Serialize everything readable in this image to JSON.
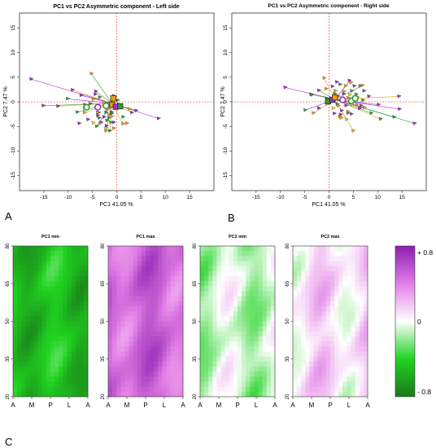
{
  "panel_labels": {
    "a": "A",
    "b": "B",
    "c": "C"
  },
  "chart_data": [
    {
      "id": "A",
      "type": "scatter",
      "title": "PC1 vs PC2 Asymmetric component - Left side",
      "xlabel": "PC1 41.05 %",
      "ylabel": "PC2 7.47 %",
      "xlim": [
        -20,
        20
      ],
      "ylim": [
        -18,
        18
      ],
      "xticks": [
        -15,
        -10,
        -5,
        0,
        5,
        10,
        15
      ],
      "yticks": [
        -15,
        -10,
        -5,
        0,
        5,
        10,
        15
      ],
      "xtick_labels": [
        "-15",
        "-10",
        "-5",
        "0",
        "5",
        "10",
        "15"
      ],
      "ytick_labels": [
        "-15",
        "-10",
        "-5",
        "0",
        "5",
        "10",
        "15"
      ],
      "reference_lines": {
        "x": 0,
        "y": 0,
        "color": "#e53935",
        "style": "dotted"
      },
      "centroid": [
        -1.0,
        -0.3
      ],
      "colors": {
        "green": "#2e9e2e",
        "purple": "#9b30c8",
        "orange": "#f09a1a",
        "yellow": "#e7d22a"
      },
      "series": [
        {
          "color": "purple",
          "points": [
            [
              -17.6,
              4.6
            ],
            [
              -12.1,
              -0.9
            ],
            [
              -15.1,
              -0.8
            ],
            [
              -9.1,
              2.4
            ],
            [
              -7.3,
              1.3
            ],
            [
              -6.5,
              -0.6
            ],
            [
              -5.9,
              -3.6
            ],
            [
              -3.9,
              -2.8
            ],
            [
              -3.2,
              -4.2
            ],
            [
              -2.1,
              -4.9
            ],
            [
              -1.1,
              -2.1
            ],
            [
              -0.6,
              -4.2
            ],
            [
              -4.4,
              1.5
            ],
            [
              -4.3,
              2.1
            ],
            [
              4.0,
              -1.8
            ],
            [
              0.4,
              -0.5
            ],
            [
              -0.8,
              0.3
            ],
            [
              -7.7,
              -4.4
            ],
            [
              -2.6,
              -3.1
            ],
            [
              3.1,
              -2.2
            ],
            [
              8.6,
              -3.4
            ],
            [
              -6.6,
              -1.3
            ],
            [
              -3.7,
              -2.2
            ]
          ]
        },
        {
          "color": "green",
          "points": [
            [
              -8.1,
              -2.1
            ],
            [
              -3.5,
              0.9
            ],
            [
              -2.2,
              -2.2
            ],
            [
              -1.0,
              -2.4
            ],
            [
              0.2,
              0.3
            ],
            [
              -10.1,
              0.6
            ],
            [
              -5.4,
              -0.4
            ],
            [
              -3.6,
              -3.3
            ],
            [
              -1.6,
              -3.3
            ],
            [
              -1.4,
              -5.9
            ],
            [
              -0.6,
              1.2
            ],
            [
              -4.1,
              -5.0
            ],
            [
              1.3,
              -3.1
            ],
            [
              -2.0,
              -3.8
            ],
            [
              -1.2,
              -4.2
            ]
          ]
        },
        {
          "color": "orange",
          "points": [
            [
              -5.2,
              5.7
            ],
            [
              -3.7,
              -0.8
            ],
            [
              -1.6,
              -2.6
            ],
            [
              -0.4,
              -1.3
            ],
            [
              -0.6,
              -5.4
            ],
            [
              -3.9,
              -2.2
            ],
            [
              -2.0,
              -1.7
            ],
            [
              -6.6,
              -2.2
            ],
            [
              -3.4,
              -4.4
            ],
            [
              -2.2,
              -5.9
            ],
            [
              1.3,
              -4.5
            ],
            [
              2.1,
              -4.4
            ],
            [
              2.6,
              -1.5
            ],
            [
              -1.0,
              -3.0
            ],
            [
              -4.8,
              0.5
            ],
            [
              -3.8,
              -1.1
            ]
          ]
        },
        {
          "color": "yellow",
          "points": [
            [
              -1.3,
              -1.2
            ],
            [
              -0.8,
              0.9
            ],
            [
              -2.6,
              -0.3
            ],
            [
              -2.2,
              -5.4
            ],
            [
              -4.8,
              -4.3
            ]
          ]
        }
      ],
      "rays": [
        [
          -17.6,
          4.6
        ],
        [
          -15.1,
          -0.8
        ],
        [
          -12.1,
          -0.9
        ],
        [
          -10.1,
          0.6
        ],
        [
          -8.1,
          -2.1
        ],
        [
          -9.1,
          2.4
        ],
        [
          -7.3,
          1.3
        ],
        [
          -5.2,
          5.7
        ],
        [
          -6.6,
          -2.2
        ],
        [
          -4.1,
          -5.0
        ],
        [
          -2.2,
          -5.9
        ],
        [
          1.3,
          -4.5
        ],
        [
          8.6,
          -3.4
        ],
        [
          4.0,
          -1.8
        ],
        [
          3.1,
          -2.2
        ],
        [
          2.6,
          -1.5
        ],
        [
          -4.3,
          2.1
        ],
        [
          -1.4,
          -5.9
        ]
      ],
      "centre_markers": [
        {
          "x": -6.2,
          "y": -1.1,
          "shape": "circle",
          "color": "green"
        },
        {
          "x": -3.9,
          "y": -1.1,
          "shape": "circle",
          "color": "purple"
        },
        {
          "x": -2.2,
          "y": -0.8,
          "shape": "circle",
          "color": "green"
        },
        {
          "x": -0.9,
          "y": -0.6,
          "shape": "square",
          "color": "orange"
        },
        {
          "x": -0.2,
          "y": -1.0,
          "shape": "square",
          "color": "purple"
        },
        {
          "x": 0.7,
          "y": -0.9,
          "shape": "square",
          "color": "green"
        },
        {
          "x": -0.7,
          "y": 0.7,
          "shape": "square",
          "color": "orange"
        }
      ]
    },
    {
      "id": "B",
      "type": "scatter",
      "title": "PC1 vs PC2 Asymmetric component - Right side",
      "xlabel": "PC1 41.05 %",
      "ylabel": "PC2 7.47 %",
      "xlim": [
        -20,
        20
      ],
      "ylim": [
        -18,
        18
      ],
      "xticks": [
        -15,
        -10,
        -5,
        0,
        5,
        10,
        15
      ],
      "yticks": [
        -15,
        -10,
        -5,
        0,
        5,
        10,
        15
      ],
      "xtick_labels": [
        "-15",
        "-10",
        "-5",
        "0",
        "5",
        "10",
        "15"
      ],
      "ytick_labels": [
        "-15",
        "-10",
        "-5",
        "0",
        "5",
        "10",
        "15"
      ],
      "reference_lines": {
        "x": 0,
        "y": 0,
        "color": "#e53935",
        "style": "dotted"
      },
      "centroid": [
        1.2,
        0.5
      ],
      "colors": {
        "green": "#2e9e2e",
        "purple": "#9b30c8",
        "orange": "#f09a1a",
        "yellow": "#e7d22a"
      },
      "series": [
        {
          "color": "purple",
          "points": [
            [
              -9.0,
              2.9
            ],
            [
              17.6,
              -4.4
            ],
            [
              14.4,
              1.1
            ],
            [
              14.5,
              -1.5
            ],
            [
              2.4,
              -2.6
            ],
            [
              1.1,
              -2.4
            ],
            [
              4.2,
              4.3
            ],
            [
              5.2,
              3.2
            ],
            [
              3.0,
              1.6
            ],
            [
              7.2,
              2.2
            ],
            [
              -2.1,
              2.3
            ],
            [
              -3.7,
              1.5
            ],
            [
              1.6,
              4.0
            ],
            [
              -2.1,
              -1.3
            ],
            [
              4.6,
              -2.5
            ],
            [
              8.2,
              1.1
            ],
            [
              0.7,
              3.1
            ],
            [
              6.3,
              -1.4
            ],
            [
              3.5,
              -0.8
            ],
            [
              10.2,
              -0.6
            ],
            [
              1.8,
              1.1
            ],
            [
              6.6,
              -0.8
            ],
            [
              2.6,
              -1.8
            ]
          ]
        },
        {
          "color": "green",
          "points": [
            [
              -0.5,
              0.7
            ],
            [
              1.2,
              1.6
            ],
            [
              -4.9,
              -1.7
            ],
            [
              5.8,
              0.9
            ],
            [
              10.6,
              -3.5
            ],
            [
              13.4,
              -3.1
            ],
            [
              6.4,
              3.2
            ],
            [
              3.9,
              -2.3
            ],
            [
              7.0,
              0.3
            ],
            [
              1.7,
              -0.5
            ],
            [
              5.6,
              1.5
            ],
            [
              -3.5,
              1.4
            ],
            [
              4.7,
              2.2
            ],
            [
              8.7,
              -2.3
            ],
            [
              2.3,
              3.5
            ]
          ]
        },
        {
          "color": "orange",
          "points": [
            [
              5.0,
              -5.9
            ],
            [
              -3.2,
              -2.3
            ],
            [
              3.1,
              2.1
            ],
            [
              3.9,
              -2.0
            ],
            [
              7.3,
              -1.2
            ],
            [
              2.2,
              -3.0
            ],
            [
              2.5,
              -3.3
            ],
            [
              1.9,
              -0.8
            ],
            [
              3.4,
              3.2
            ],
            [
              5.7,
              -0.6
            ],
            [
              -0.6,
              2.6
            ],
            [
              -1.0,
              4.8
            ],
            [
              4.5,
              3.9
            ],
            [
              3.9,
              0.8
            ],
            [
              6.9,
              3.3
            ],
            [
              1.3,
              2.2
            ]
          ]
        },
        {
          "color": "yellow",
          "points": [
            [
              0.9,
              -1.3
            ],
            [
              4.7,
              -0.6
            ],
            [
              4.3,
              1.4
            ],
            [
              -0.4,
              -0.5
            ],
            [
              3.6,
              -3.6
            ]
          ]
        }
      ],
      "rays": [
        [
          -9.0,
          2.9
        ],
        [
          17.6,
          -4.4
        ],
        [
          14.4,
          1.1
        ],
        [
          14.5,
          -1.5
        ],
        [
          13.4,
          -3.1
        ],
        [
          10.6,
          -3.5
        ],
        [
          10.2,
          -0.6
        ],
        [
          8.7,
          -2.3
        ],
        [
          5.0,
          -5.9
        ],
        [
          -4.9,
          -1.7
        ],
        [
          -3.7,
          1.5
        ],
        [
          -1.0,
          4.8
        ],
        [
          4.2,
          4.3
        ],
        [
          6.9,
          3.3
        ],
        [
          -3.2,
          -2.3
        ],
        [
          7.3,
          -1.2
        ],
        [
          -2.1,
          2.3
        ],
        [
          3.6,
          -3.6
        ]
      ],
      "centre_markers": [
        {
          "x": -0.2,
          "y": 0.1,
          "shape": "square",
          "color": "green"
        },
        {
          "x": 0.7,
          "y": 0.4,
          "shape": "square",
          "color": "purple"
        },
        {
          "x": 1.2,
          "y": 0.9,
          "shape": "square",
          "color": "orange"
        },
        {
          "x": 2.8,
          "y": 0.4,
          "shape": "circle",
          "color": "purple"
        },
        {
          "x": 4.6,
          "y": 0.2,
          "shape": "circle",
          "color": "green"
        },
        {
          "x": 5.4,
          "y": 0.7,
          "shape": "circle",
          "color": "green"
        }
      ]
    },
    {
      "id": "C",
      "type": "heatmap",
      "panels": [
        {
          "title": "PC1 min",
          "base": -0.5,
          "amp": 0.22,
          "seed": 3
        },
        {
          "title": "PC1 max",
          "base": 0.5,
          "amp": 0.22,
          "seed": 3
        },
        {
          "title": "PC2 min",
          "base": -0.1,
          "amp": 0.25,
          "seed": 11
        },
        {
          "title": "PC2 max",
          "base": 0.1,
          "amp": 0.25,
          "seed": 11
        }
      ],
      "x_ticks": [
        "A",
        "M",
        "P",
        "L",
        "A"
      ],
      "y_ticks": [
        "80",
        "65",
        "50",
        "35",
        "20"
      ],
      "y_range": [
        20,
        80
      ],
      "grid": {
        "cols": 18,
        "rows": 30
      },
      "colorbar": {
        "labels": [
          "+ 0.8",
          "0",
          "- 0.8"
        ],
        "range": [
          -0.8,
          0.8
        ],
        "stops": [
          "#1a7a1a",
          "#1fd31f",
          "#ffffff",
          "#e27fe6",
          "#8a1fb0"
        ]
      }
    }
  ]
}
